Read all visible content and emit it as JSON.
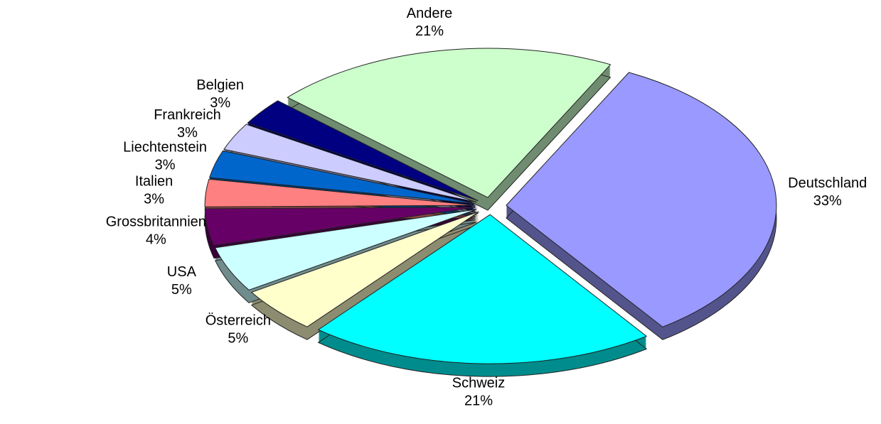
{
  "chart_data": {
    "type": "pie",
    "categories": [
      "Deutschland",
      "Schweiz",
      "Österreich",
      "USA",
      "Grossbritannien",
      "Italien",
      "Liechtenstein",
      "Frankreich",
      "Belgien",
      "Andere"
    ],
    "values": [
      33,
      21,
      5,
      5,
      4,
      3,
      3,
      3,
      3,
      21
    ],
    "value_labels": [
      "33%",
      "21%",
      "5%",
      "5%",
      "4%",
      "3%",
      "3%",
      "3%",
      "3%",
      "21%"
    ],
    "colors": [
      "#9999ff",
      "#00ffff",
      "#ffffcc",
      "#ccffff",
      "#660066",
      "#ff8080",
      "#0066cc",
      "#ccccff",
      "#000080",
      "#ccffcc"
    ]
  }
}
